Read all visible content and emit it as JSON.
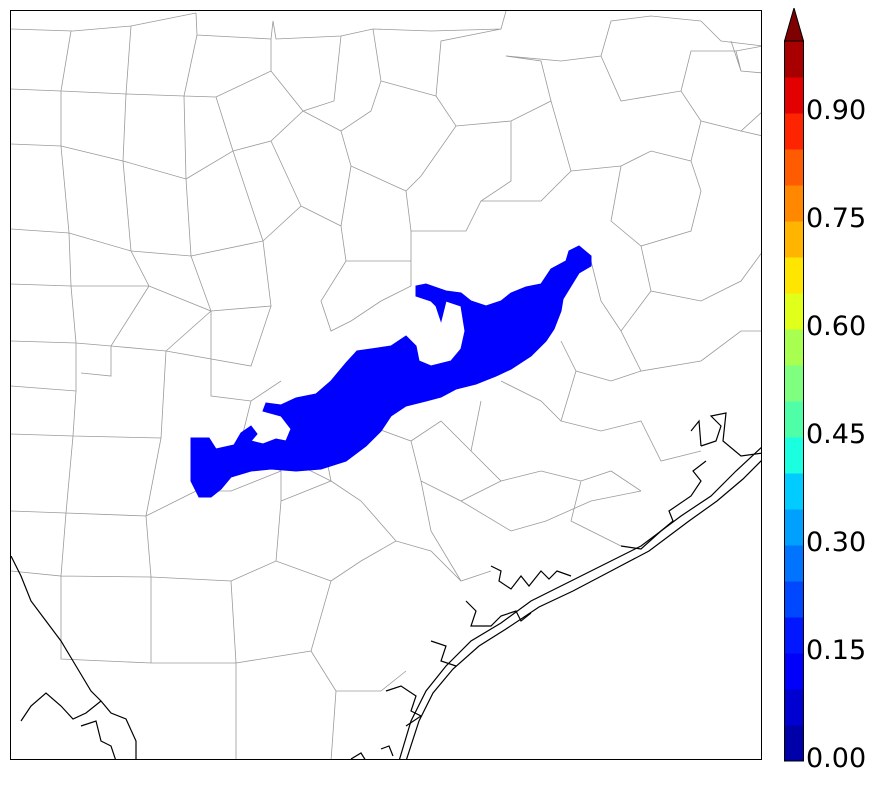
{
  "colorbar": {
    "tick_labels": [
      "0.00",
      "0.15",
      "0.30",
      "0.45",
      "0.60",
      "0.75",
      "0.90"
    ],
    "levels": 20,
    "vmin": 0.0,
    "vmax": 1.0,
    "extend": "max",
    "colors": [
      "#00007f",
      "#0000a8",
      "#0000d0",
      "#0000fb",
      "#0017ff",
      "#0048ff",
      "#0074ff",
      "#00a0ff",
      "#00ccff",
      "#1affe0",
      "#4fffa8",
      "#7fff7f",
      "#a8ff4f",
      "#e0ff1a",
      "#ffe600",
      "#ffb400",
      "#ff8800",
      "#ff5b00",
      "#ff2400",
      "#e20000",
      "#a80000",
      "#7f0000"
    ]
  },
  "map": {
    "highlight_value_range": "0.10-0.15",
    "highlight_color": "#0000ff",
    "county_line_color": "#9a9a9a",
    "coast_line_color": "#000000"
  }
}
